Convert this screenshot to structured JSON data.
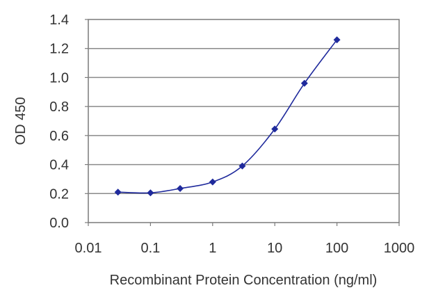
{
  "chart_data": {
    "type": "line",
    "title": "",
    "xlabel": "Recombinant Protein Concentration (ng/ml)",
    "ylabel": "OD 450",
    "xscale": "log",
    "xlim": [
      0.01,
      1000
    ],
    "ylim": [
      0.0,
      1.4
    ],
    "x_ticks": [
      "0.01",
      "0.1",
      "1",
      "10",
      "100",
      "1000"
    ],
    "y_ticks": [
      "0.0",
      "0.2",
      "0.4",
      "0.6",
      "0.8",
      "1.0",
      "1.2",
      "1.4"
    ],
    "grid": "horizontal",
    "series": [
      {
        "color": "#1f2a9c",
        "marker": "diamond",
        "x": [
          0.03,
          0.1,
          0.3,
          1,
          3,
          10,
          30,
          100
        ],
        "y": [
          0.21,
          0.205,
          0.235,
          0.28,
          0.39,
          0.645,
          0.96,
          1.26
        ]
      }
    ]
  }
}
